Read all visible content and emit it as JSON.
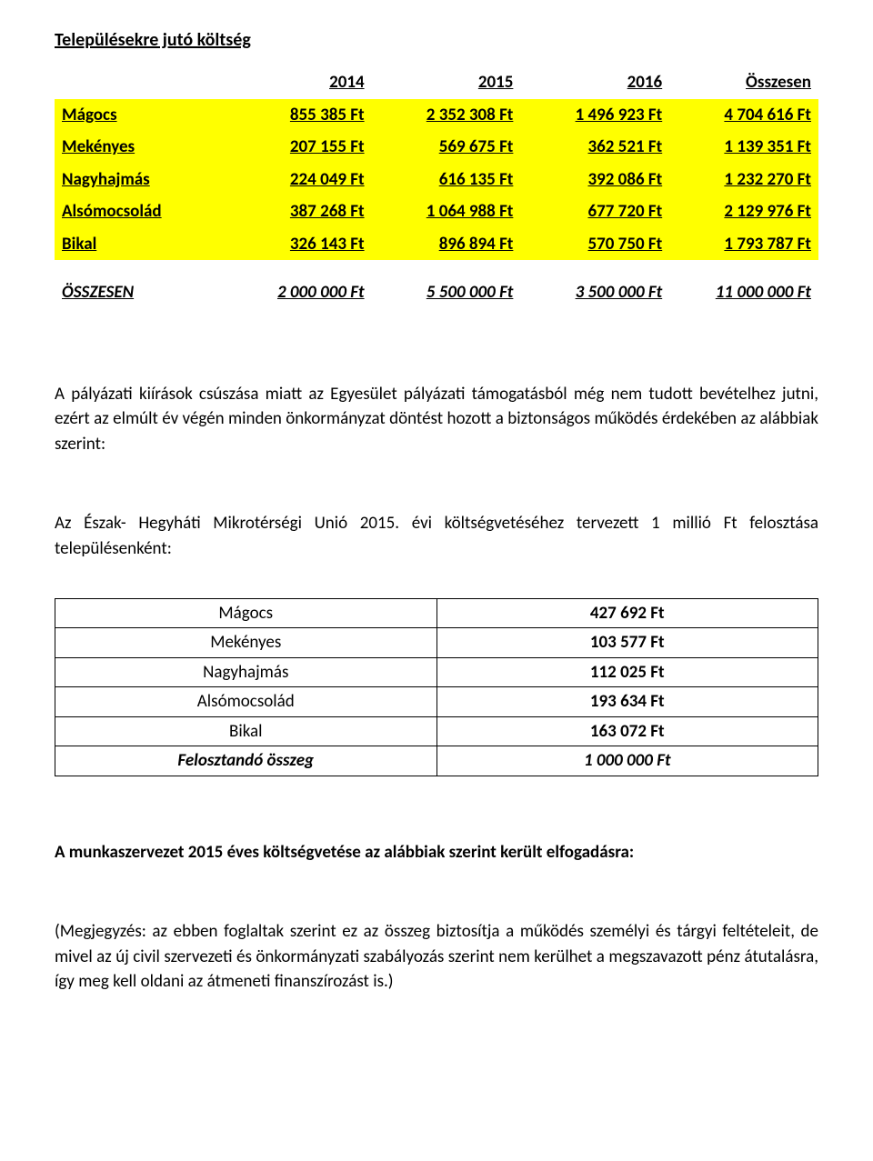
{
  "title": "Településekre jutó költség",
  "yellow_table": {
    "headers": [
      "",
      "2014",
      "2015",
      "2016",
      "Összesen"
    ],
    "rows": [
      {
        "label": "Mágocs",
        "v": [
          "855 385 Ft",
          "2 352 308 Ft",
          "1 496 923 Ft",
          "4 704 616 Ft"
        ]
      },
      {
        "label": "Mekényes",
        "v": [
          "207 155 Ft",
          "569 675 Ft",
          "362 521 Ft",
          "1 139 351 Ft"
        ]
      },
      {
        "label": "Nagyhajmás",
        "v": [
          "224 049 Ft",
          "616 135 Ft",
          "392 086 Ft",
          "1 232 270 Ft"
        ]
      },
      {
        "label": "Alsómocsolád",
        "v": [
          "387 268 Ft",
          "1 064 988 Ft",
          "677 720 Ft",
          "2 129 976 Ft"
        ]
      },
      {
        "label": "Bikal",
        "v": [
          "326 143 Ft",
          "896 894 Ft",
          "570 750 Ft",
          "1 793 787 Ft"
        ]
      }
    ]
  },
  "summary_row": {
    "label": "ÖSSZESEN",
    "v": [
      "2 000 000 Ft",
      "5 500 000 Ft",
      "3 500 000 Ft",
      "11 000 000 Ft"
    ]
  },
  "paragraph1": "A pályázati kiírások csúszása miatt az Egyesület pályázati támogatásból még nem tudott bevételhez jutni, ezért az elmúlt év végén minden önkormányzat döntést hozott a biztonságos működés érdekében az alábbiak szerint:",
  "paragraph2": "Az Észak- Hegyháti Mikrotérségi Unió 2015. évi költségvetéséhez tervezett 1 millió Ft felosztása településenként:",
  "distribution_table": {
    "rows": [
      {
        "label": "Mágocs",
        "value": "427 692 Ft"
      },
      {
        "label": "Mekényes",
        "value": "103 577 Ft"
      },
      {
        "label": "Nagyhajmás",
        "value": "112 025 Ft"
      },
      {
        "label": "Alsómocsolád",
        "value": "193 634 Ft"
      },
      {
        "label": "Bikal",
        "value": "163 072 Ft"
      }
    ],
    "total": {
      "label": "Felosztandó összeg",
      "value": "1 000 000 Ft"
    }
  },
  "paragraph3": "A munkaszervezet 2015 éves költségvetése az alábbiak szerint került elfogadásra:",
  "paragraph4": "(Megjegyzés: az ebben foglaltak  szerint ez az összeg biztosítja a működés személyi és tárgyi feltételeit, de  mivel az új civil szervezeti és önkormányzati szabályozás szerint nem kerülhet a megszavazott pénz átutalásra, így meg kell oldani az átmeneti finanszírozást is.)",
  "colors": {
    "highlight": "#ffff00",
    "background": "#ffffff",
    "border": "#000000",
    "text": "#000000"
  }
}
